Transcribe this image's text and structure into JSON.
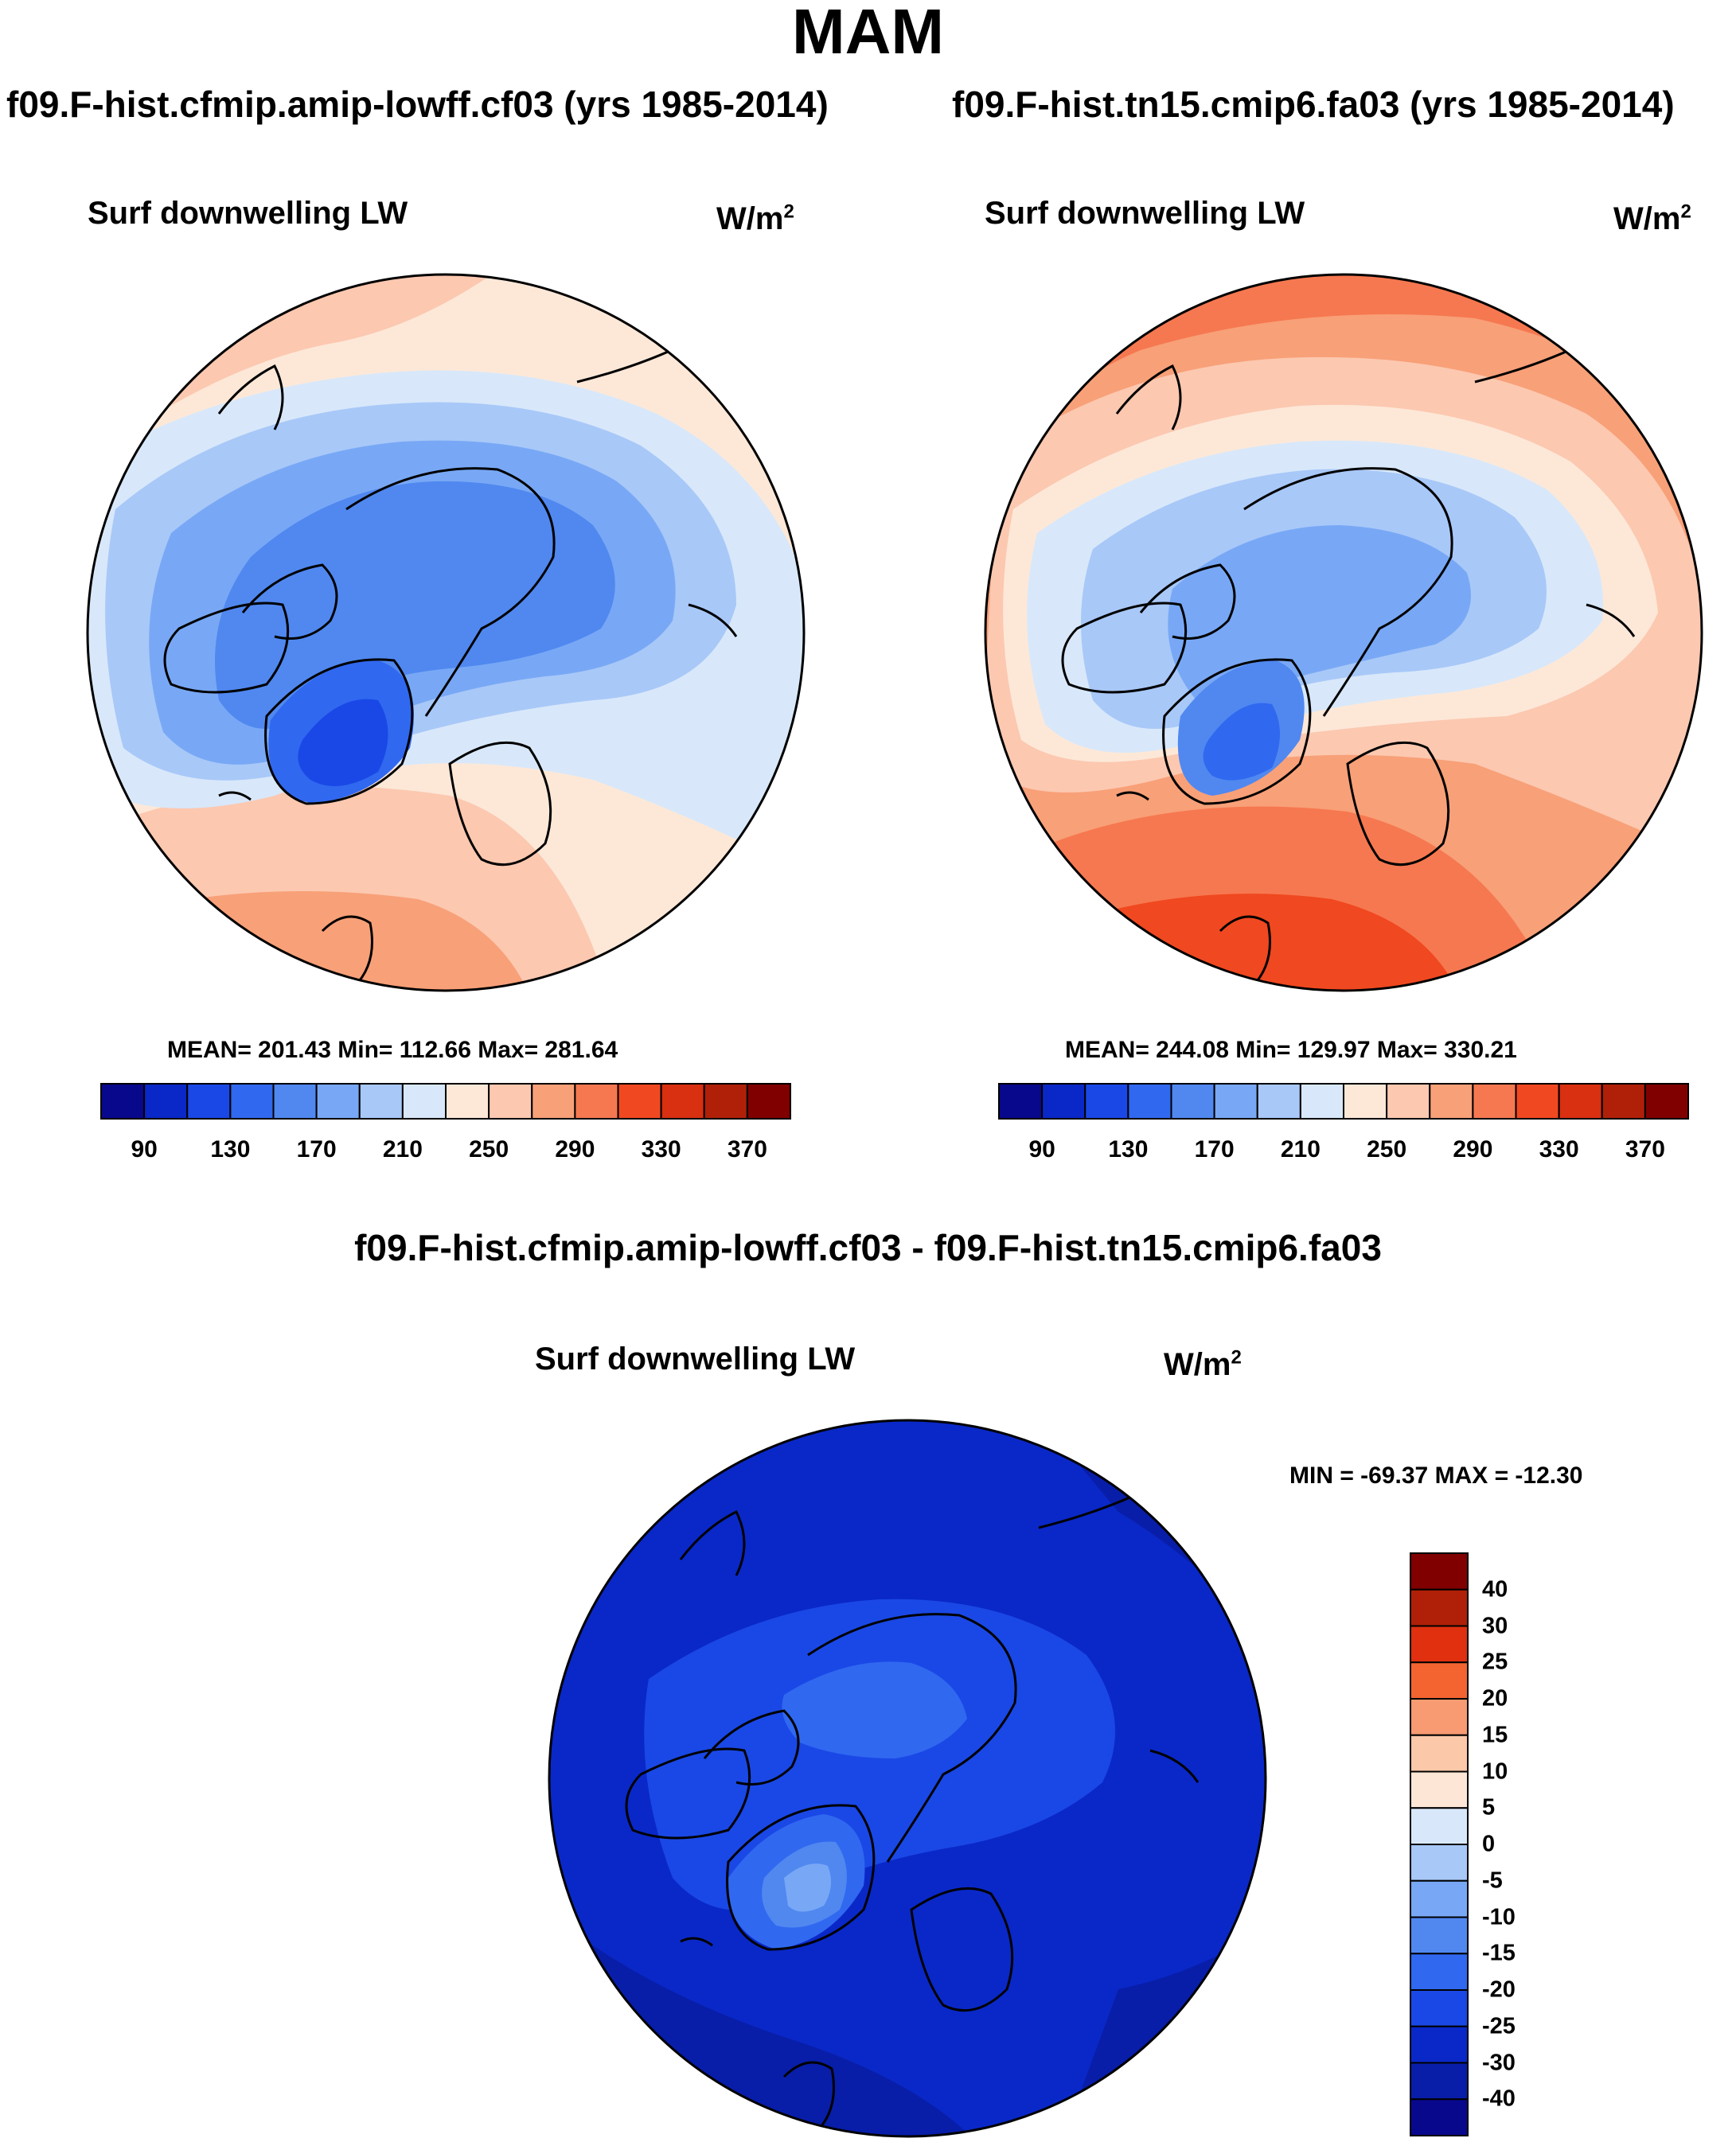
{
  "title": "MAM",
  "panels": [
    {
      "run": "f09.F-hist.cfmip.amip-lowff.cf03 (yrs 1985-2014)",
      "field": "Surf downwelling LW",
      "units_base": "W/m",
      "units_exp": "2",
      "stats": "MEAN= 201.43  Min= 112.66  Max= 281.64"
    },
    {
      "run": "f09.F-hist.tn15.cmip6.fa03 (yrs 1985-2014)",
      "field": "Surf downwelling LW",
      "units_base": "W/m",
      "units_exp": "2",
      "stats": "MEAN= 244.08  Min= 129.97  Max= 330.21"
    }
  ],
  "diff": {
    "title": "f09.F-hist.cfmip.amip-lowff.cf03 - f09.F-hist.tn15.cmip6.fa03",
    "field": "Surf downwelling LW",
    "units_base": "W/m",
    "units_exp": "2",
    "stats": "MIN = -69.37 MAX = -12.30"
  },
  "colorbar_abs": {
    "colors": [
      "#08088c",
      "#0a28c8",
      "#1a48e6",
      "#3068f0",
      "#5088f0",
      "#78a8f5",
      "#a8c8f8",
      "#d8e8fa",
      "#fde8d8",
      "#fcc8b0",
      "#f8a078",
      "#f67850",
      "#f04820",
      "#d83010",
      "#b02008",
      "#800000"
    ],
    "labels": [
      "90",
      "130",
      "170",
      "210",
      "250",
      "290",
      "330",
      "370"
    ]
  },
  "colorbar_diff": {
    "colors": [
      "#800000",
      "#b02008",
      "#e03010",
      "#f46430",
      "#f89a72",
      "#fcc8aa",
      "#fde6d6",
      "#d8e8fa",
      "#a8c8f8",
      "#78a8f5",
      "#5088f0",
      "#3068f0",
      "#1a48e6",
      "#0a28c8",
      "#081ea8",
      "#08088c"
    ],
    "labels": [
      "40",
      "30",
      "25",
      "20",
      "15",
      "10",
      "5",
      "0",
      "-5",
      "-10",
      "-15",
      "-20",
      "-25",
      "-30",
      "-40"
    ]
  }
}
